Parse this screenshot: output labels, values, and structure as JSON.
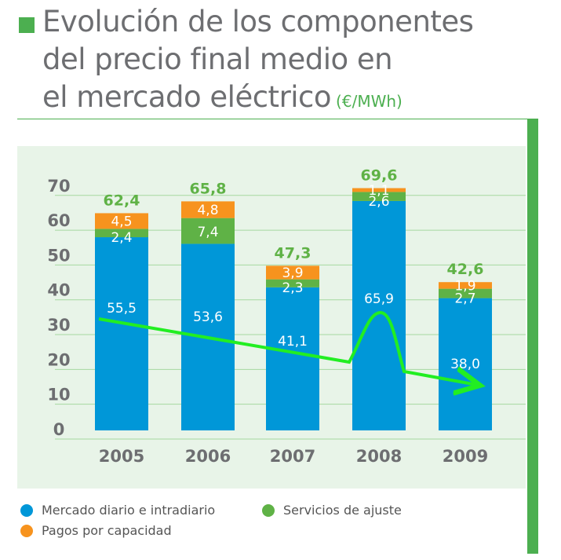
{
  "header": {
    "title_lines": [
      "Evolución de los componentes",
      "del precio final medio en",
      "el mercado eléctrico"
    ],
    "unit": "(€/MWh)"
  },
  "colors": {
    "mercado": "#0097d8",
    "servicios": "#5fb246",
    "pagos": "#f7931e",
    "accent": "#4caf50",
    "total_label": "#5fb246",
    "arrow": "#22ee22"
  },
  "legend": {
    "items": [
      {
        "label": "Mercado diario e intradiario",
        "color": "#0097d8"
      },
      {
        "label": "Servicios de ajuste",
        "color": "#5fb246"
      },
      {
        "label": "Pagos por capacidad",
        "color": "#f7931e"
      }
    ]
  },
  "chart_data": {
    "type": "bar",
    "stacked": true,
    "title": "Evolución de los componentes del precio final medio en el mercado eléctrico",
    "unit": "(€/MWh)",
    "categories": [
      "2005",
      "2006",
      "2007",
      "2008",
      "2009"
    ],
    "series": [
      {
        "name": "Mercado diario e intradiario",
        "values": [
          55.5,
          53.6,
          41.1,
          65.9,
          38.0
        ],
        "labels": [
          "55,5",
          "53,6",
          "41,1",
          "65,9",
          "38,0"
        ]
      },
      {
        "name": "Servicios de ajuste",
        "values": [
          2.4,
          7.4,
          2.3,
          2.6,
          2.7
        ],
        "labels": [
          "2,4",
          "7,4",
          "2,3",
          "2,6",
          "2,7"
        ]
      },
      {
        "name": "Pagos por capacidad",
        "values": [
          4.5,
          4.8,
          3.9,
          1.1,
          1.9
        ],
        "labels": [
          "4,5",
          "4,8",
          "3,9",
          "1,1",
          "1,9"
        ]
      }
    ],
    "totals": [
      62.4,
      65.8,
      47.3,
      69.6,
      42.6
    ],
    "total_labels": [
      "62,4",
      "65,8",
      "47,3",
      "69,6",
      "42,6"
    ],
    "yticks": [
      "0",
      "10",
      "20",
      "30",
      "40",
      "50",
      "60",
      "70"
    ],
    "ylim": [
      0,
      75
    ],
    "grid": true
  }
}
